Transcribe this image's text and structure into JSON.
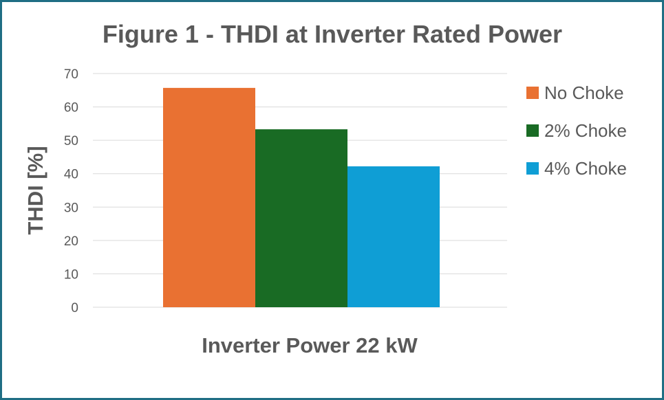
{
  "chart_data": {
    "type": "bar",
    "title": "Figure 1 - THDI at Inverter Rated Power",
    "xlabel": "Inverter Power 22 kW",
    "ylabel": "THDI [%]",
    "ylim": [
      0,
      70
    ],
    "yticks": [
      "0",
      "10",
      "20",
      "30",
      "40",
      "50",
      "60",
      "70"
    ],
    "grid": true,
    "legend_position": "right",
    "categories": [
      "Inverter Power 22 kW"
    ],
    "series": [
      {
        "name": "No Choke",
        "values": [
          65.7
        ],
        "color": "#e97132"
      },
      {
        "name": "2% Choke",
        "values": [
          53.3
        ],
        "color": "#196b24"
      },
      {
        "name": "4% Choke",
        "values": [
          42.2
        ],
        "color": "#0f9ed5"
      }
    ]
  }
}
